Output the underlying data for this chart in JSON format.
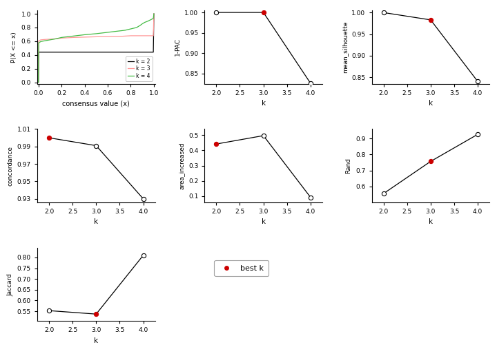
{
  "ecdf": {
    "k2_color": "#000000",
    "k3_color": "#ff9999",
    "k4_color": "#44bb44",
    "xlabel": "consensus value (x)",
    "ylabel": "P(X <= x)"
  },
  "pac": {
    "k": [
      2,
      3,
      4
    ],
    "y": [
      1.0,
      1.0,
      0.826
    ],
    "best_k": 3,
    "ylabel": "1-PAC",
    "ylim": [
      0.825,
      1.005
    ],
    "yticks": [
      0.85,
      0.9,
      0.95,
      1.0
    ]
  },
  "silhouette": {
    "k": [
      2,
      3,
      4
    ],
    "y": [
      1.0,
      0.983,
      0.84
    ],
    "best_k": 3,
    "ylabel": "mean_silhouette",
    "ylim": [
      0.835,
      1.005
    ],
    "yticks": [
      0.85,
      0.9,
      0.95,
      1.0
    ]
  },
  "concordance": {
    "k": [
      2,
      3,
      4
    ],
    "y": [
      1.0,
      0.991,
      0.93
    ],
    "best_k": 2,
    "ylabel": "concordance",
    "ylim": [
      0.926,
      1.003
    ],
    "yticks": [
      0.93,
      0.95,
      0.97,
      0.99,
      1.01
    ]
  },
  "area_increased": {
    "k": [
      2,
      3,
      4
    ],
    "y": [
      0.442,
      0.497,
      0.093
    ],
    "best_k": 2,
    "ylabel": "area_increased",
    "ylim": [
      0.06,
      0.54
    ],
    "yticks": [
      0.1,
      0.2,
      0.3,
      0.4,
      0.5
    ]
  },
  "rand": {
    "k": [
      2,
      3,
      4
    ],
    "y": [
      0.555,
      0.757,
      0.927
    ],
    "best_k": 3,
    "ylabel": "Rand",
    "ylim": [
      0.5,
      0.96
    ],
    "yticks": [
      0.6,
      0.7,
      0.8,
      0.9
    ]
  },
  "jaccard": {
    "k": [
      2,
      3,
      4
    ],
    "y": [
      0.553,
      0.537,
      0.81
    ],
    "best_k": 3,
    "ylabel": "Jaccard",
    "ylim": [
      0.505,
      0.845
    ],
    "yticks": [
      0.55,
      0.6,
      0.65,
      0.7,
      0.75,
      0.8
    ]
  },
  "legend_text": "best k",
  "line_color": "#000000",
  "best_color": "#cc0000",
  "open_color": "#000000"
}
